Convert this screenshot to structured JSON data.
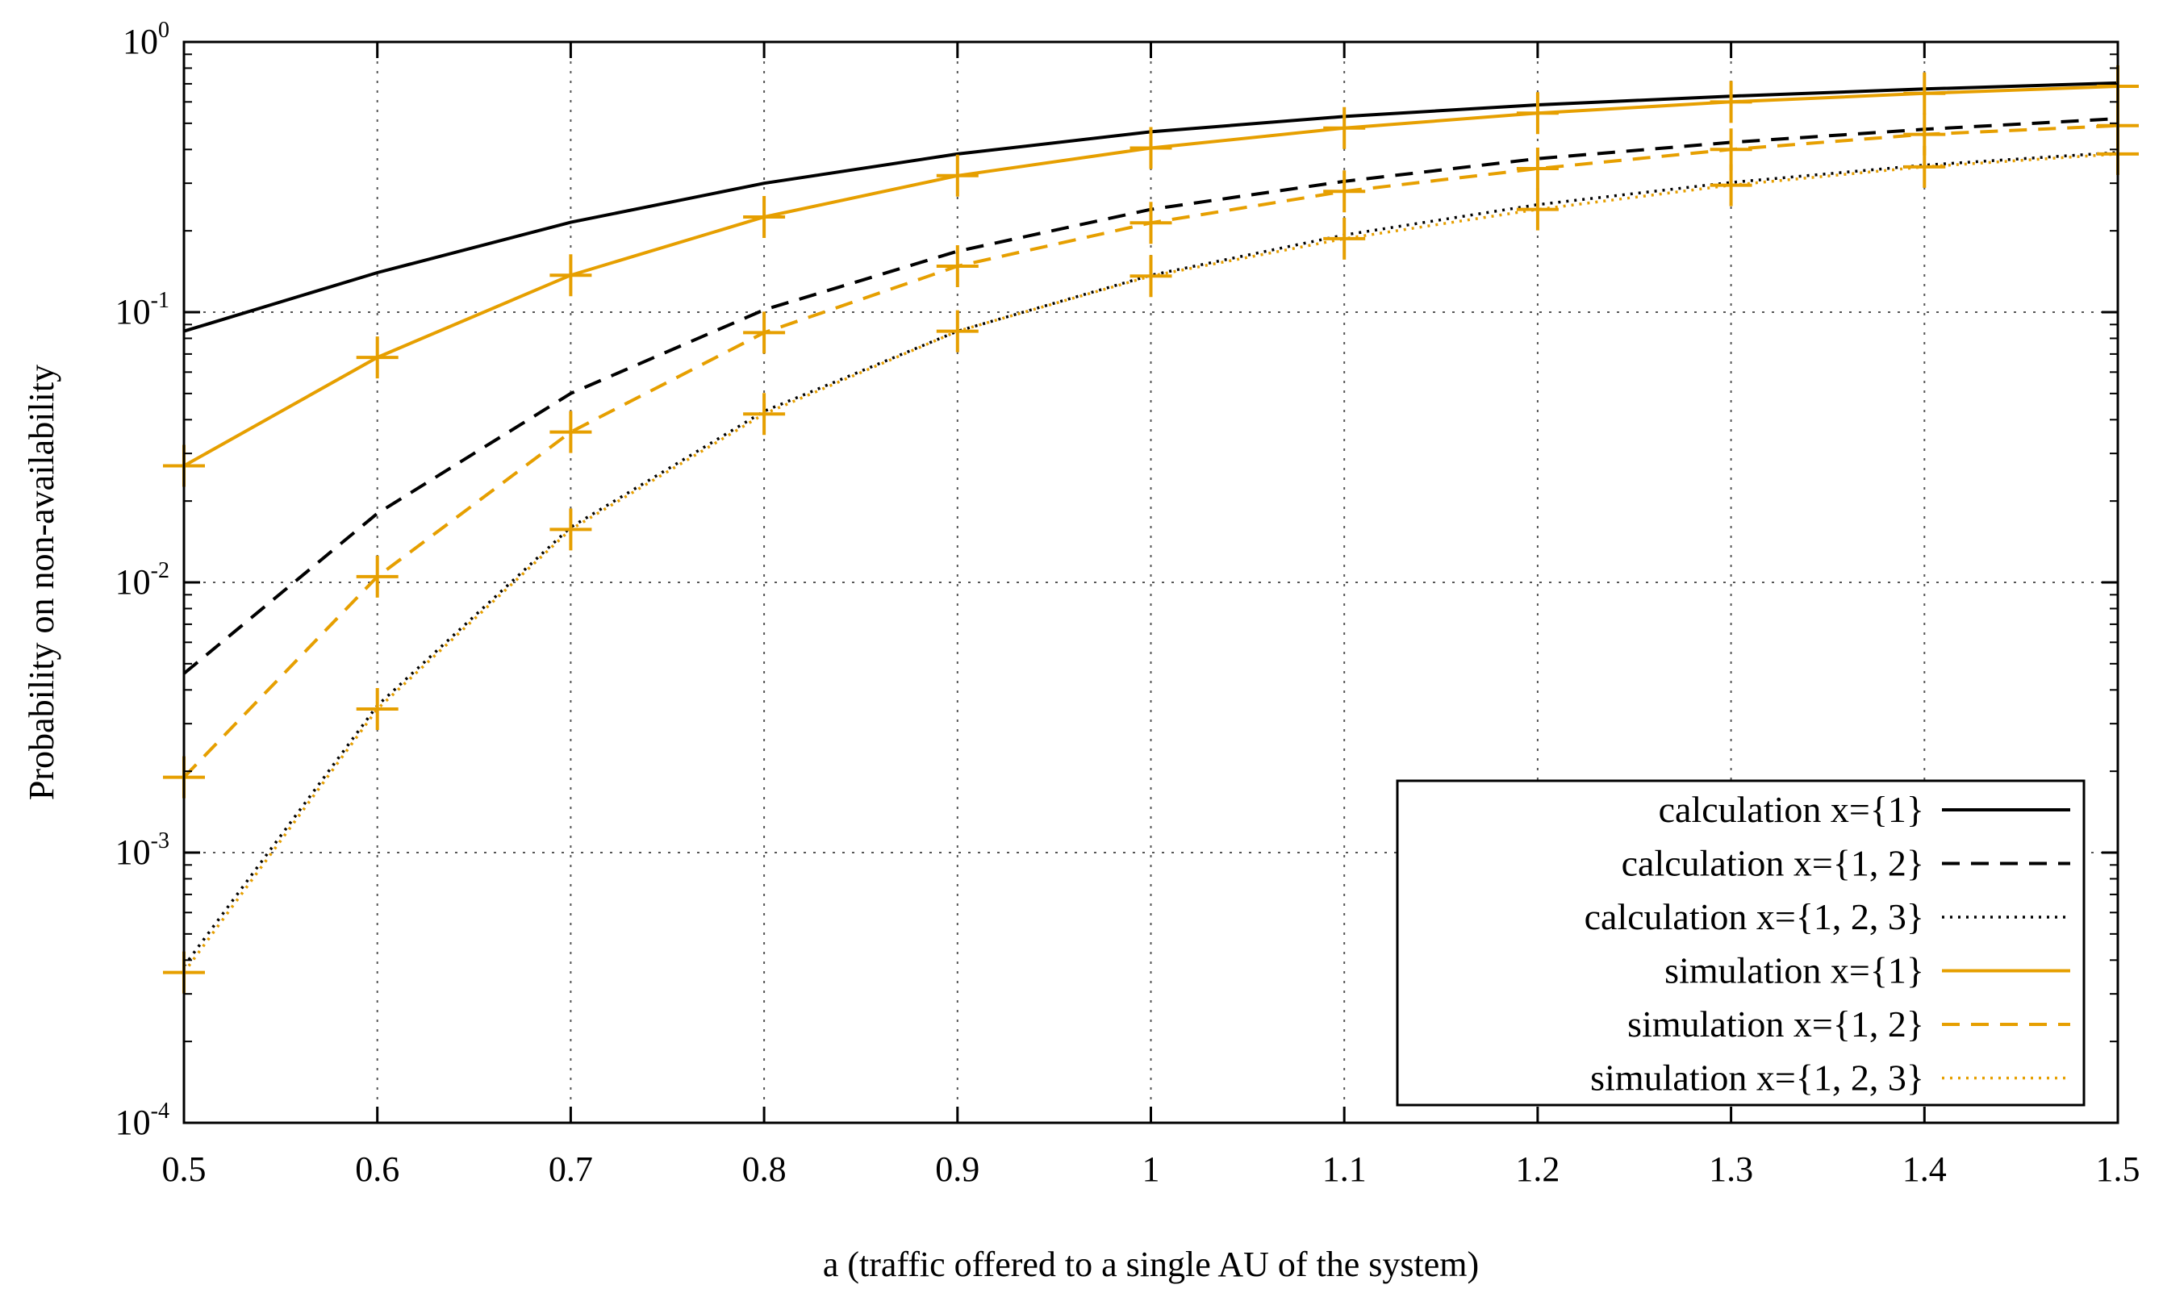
{
  "chart_data": {
    "type": "line",
    "xlabel": "a (traffic offered to a single AU of the system)",
    "ylabel": "Probability on non-availability",
    "xlim": [
      0.5,
      1.5
    ],
    "ylim": [
      0.0001,
      1
    ],
    "yscale": "log",
    "grid": true,
    "legend_position": "bottom-right",
    "x_ticks": [
      "0.5",
      "0.6",
      "0.7",
      "0.8",
      "0.9",
      "1",
      "1.1",
      "1.2",
      "1.3",
      "1.4",
      "1.5"
    ],
    "y_ticks": [
      {
        "base": "10",
        "exp": "0",
        "value": 1
      },
      {
        "base": "10",
        "exp": "-1",
        "value": 0.1
      },
      {
        "base": "10",
        "exp": "-2",
        "value": 0.01
      },
      {
        "base": "10",
        "exp": "-3",
        "value": 0.001
      },
      {
        "base": "10",
        "exp": "-4",
        "value": 0.0001
      }
    ],
    "x": [
      0.5,
      0.6,
      0.7,
      0.8,
      0.9,
      1.0,
      1.1,
      1.2,
      1.3,
      1.4,
      1.5
    ],
    "series": [
      {
        "name": "calculation  x={1}",
        "color": "#000000",
        "dash": "solid",
        "markers": false,
        "values": [
          0.085,
          0.14,
          0.215,
          0.3,
          0.385,
          0.465,
          0.53,
          0.585,
          0.63,
          0.67,
          0.705
        ]
      },
      {
        "name": "calculation  x={1, 2}",
        "color": "#000000",
        "dash": "dashed",
        "markers": false,
        "values": [
          0.0046,
          0.018,
          0.05,
          0.102,
          0.168,
          0.24,
          0.305,
          0.37,
          0.425,
          0.475,
          0.52
        ]
      },
      {
        "name": "calculation  x={1, 2, 3}",
        "color": "#000000",
        "dash": "dotted",
        "markers": false,
        "values": [
          0.00038,
          0.0035,
          0.016,
          0.043,
          0.085,
          0.137,
          0.193,
          0.25,
          0.302,
          0.35,
          0.39
        ]
      },
      {
        "name": "simulation  x={1}",
        "color": "#E69F00",
        "dash": "solid",
        "markers": true,
        "values": [
          0.027,
          0.068,
          0.137,
          0.225,
          0.32,
          0.405,
          0.48,
          0.545,
          0.6,
          0.645,
          0.685
        ]
      },
      {
        "name": "simulation  x={1, 2}",
        "color": "#E69F00",
        "dash": "dashed",
        "markers": true,
        "values": [
          0.0019,
          0.0105,
          0.036,
          0.084,
          0.148,
          0.214,
          0.28,
          0.34,
          0.4,
          0.455,
          0.49
        ]
      },
      {
        "name": "simulation  x={1, 2, 3}",
        "color": "#E69F00",
        "dash": "dotted",
        "markers": true,
        "values": [
          0.00036,
          0.0034,
          0.0157,
          0.042,
          0.085,
          0.136,
          0.187,
          0.24,
          0.295,
          0.345,
          0.385
        ]
      }
    ]
  }
}
